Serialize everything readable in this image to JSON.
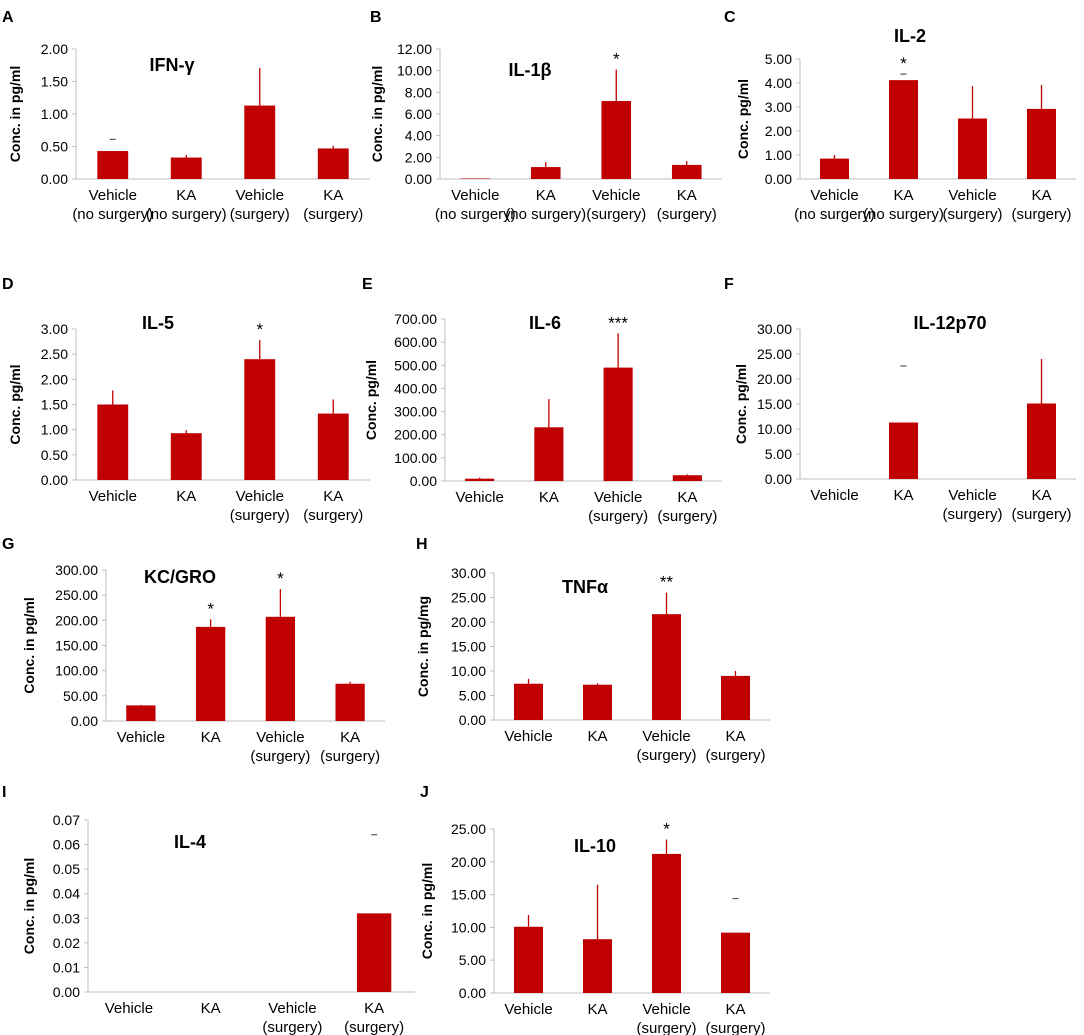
{
  "colors": {
    "bar": "#c00000",
    "axis": "#bfbfbf",
    "text": "#000000"
  },
  "chart_data": [
    {
      "panel": "A",
      "type": "bar",
      "title": "IFN-γ",
      "ylabel": "Conc. in pg/ml",
      "ylim": [
        0,
        2
      ],
      "yticks": [
        "0.00",
        "0.50",
        "1.00",
        "1.50",
        "2.00"
      ],
      "categories": [
        [
          "Vehicle",
          "(no surgery)"
        ],
        [
          "KA",
          "(no surgery)"
        ],
        [
          "Vehicle",
          "(surgery)"
        ],
        [
          "KA",
          "(surgery)"
        ]
      ],
      "values": [
        0.43,
        0.33,
        1.13,
        0.47
      ],
      "errors": [
        0.18,
        0.04,
        0.58,
        0.04
      ],
      "error_style": [
        "dash",
        "bar",
        "bar",
        "bar"
      ],
      "significance": [
        "",
        "",
        "",
        ""
      ]
    },
    {
      "panel": "B",
      "type": "bar",
      "title": "IL-1β",
      "ylabel": "Conc. in pg/ml",
      "ylim": [
        0,
        12
      ],
      "yticks": [
        "0.00",
        "2.00",
        "4.00",
        "6.00",
        "8.00",
        "10.00",
        "12.00"
      ],
      "categories": [
        [
          "Vehicle",
          "(no surgery)"
        ],
        [
          "KA",
          "(no surgery)"
        ],
        [
          "Vehicle",
          "(surgery)"
        ],
        [
          "KA",
          "(surgery)"
        ]
      ],
      "values": [
        0.05,
        1.1,
        7.2,
        1.3
      ],
      "errors": [
        0,
        0.45,
        2.9,
        0.35
      ],
      "error_style": [
        "bar",
        "bar",
        "bar",
        "bar"
      ],
      "significance": [
        "",
        "",
        "*",
        ""
      ]
    },
    {
      "panel": "C",
      "type": "bar",
      "title": "IL-2",
      "ylabel": "Conc. pg/ml",
      "ylim": [
        0,
        5
      ],
      "yticks": [
        "0.00",
        "1.00",
        "2.00",
        "3.00",
        "4.00",
        "5.00"
      ],
      "categories": [
        [
          "Vehicle",
          "(no surgery)"
        ],
        [
          "KA",
          "(no surgery)"
        ],
        [
          "Vehicle",
          "(surgery)"
        ],
        [
          "KA",
          "(surgery)"
        ]
      ],
      "values": [
        0.85,
        4.12,
        2.52,
        2.92
      ],
      "errors": [
        0.15,
        0.25,
        1.35,
        1.0
      ],
      "error_style": [
        "bar",
        "dash",
        "bar",
        "bar"
      ],
      "significance": [
        "",
        "*",
        "",
        ""
      ]
    },
    {
      "panel": "D",
      "type": "bar",
      "title": "IL-5",
      "ylabel": "Conc. pg/ml",
      "ylim": [
        0,
        3
      ],
      "yticks": [
        "0.00",
        "0.50",
        "1.00",
        "1.50",
        "2.00",
        "2.50",
        "3.00"
      ],
      "categories": [
        [
          "Vehicle"
        ],
        [
          "KA"
        ],
        [
          "Vehicle",
          "(surgery)"
        ],
        [
          "KA",
          "(surgery)"
        ]
      ],
      "values": [
        1.5,
        0.93,
        2.4,
        1.32
      ],
      "errors": [
        0.28,
        0.06,
        0.38,
        0.28
      ],
      "error_style": [
        "bar",
        "bar",
        "bar",
        "bar"
      ],
      "significance": [
        "",
        "",
        "*",
        ""
      ]
    },
    {
      "panel": "E",
      "type": "bar",
      "title": "IL-6",
      "ylabel": "Conc. pg/ml",
      "ylim": [
        0,
        700
      ],
      "yticks": [
        "0.00",
        "100.00",
        "200.00",
        "300.00",
        "400.00",
        "500.00",
        "600.00",
        "700.00"
      ],
      "categories": [
        [
          "Vehicle"
        ],
        [
          "KA"
        ],
        [
          "Vehicle",
          "(surgery)"
        ],
        [
          "KA",
          "(surgery)"
        ]
      ],
      "values": [
        10,
        232,
        490,
        25
      ],
      "errors": [
        5,
        122,
        148,
        4
      ],
      "error_style": [
        "bar",
        "bar",
        "bar",
        "bar"
      ],
      "significance": [
        "",
        "",
        "***",
        ""
      ]
    },
    {
      "panel": "F",
      "type": "bar",
      "title": "IL-12p70",
      "ylabel": "Conc. pg/ml",
      "ylim": [
        0,
        30
      ],
      "yticks": [
        "0.00",
        "5.00",
        "10.00",
        "15.00",
        "20.00",
        "25.00",
        "30.00"
      ],
      "categories": [
        [
          "Vehicle"
        ],
        [
          "KA"
        ],
        [
          "Vehicle",
          "(surgery)"
        ],
        [
          "KA",
          "(surgery)"
        ]
      ],
      "values": [
        0,
        11.3,
        0,
        15.1
      ],
      "errors": [
        0,
        11.3,
        0,
        8.9
      ],
      "error_style": [
        "bar",
        "dash",
        "bar",
        "bar"
      ],
      "significance": [
        "",
        "",
        "",
        ""
      ]
    },
    {
      "panel": "G",
      "type": "bar",
      "title": "KC/GRO",
      "ylabel": "Conc. in pg/ml",
      "ylim": [
        0,
        300
      ],
      "yticks": [
        "0.00",
        "50.00",
        "100.00",
        "150.00",
        "200.00",
        "250.00",
        "300.00"
      ],
      "categories": [
        [
          "Vehicle"
        ],
        [
          "KA"
        ],
        [
          "Vehicle",
          "(surgery)"
        ],
        [
          "KA",
          "(surgery)"
        ]
      ],
      "values": [
        31,
        187,
        207,
        74
      ],
      "errors": [
        1,
        15,
        55,
        4
      ],
      "error_style": [
        "bar",
        "bar",
        "bar",
        "bar"
      ],
      "significance": [
        "",
        "*",
        "*",
        ""
      ]
    },
    {
      "panel": "H",
      "type": "bar",
      "title": "TNFα",
      "ylabel": "Conc. in pg/mg",
      "ylim": [
        0,
        30
      ],
      "yticks": [
        "0.00",
        "5.00",
        "10.00",
        "15.00",
        "20.00",
        "25.00",
        "30.00"
      ],
      "categories": [
        [
          "Vehicle"
        ],
        [
          "KA"
        ],
        [
          "Vehicle",
          "(surgery)"
        ],
        [
          "KA",
          "(surgery)"
        ]
      ],
      "values": [
        7.4,
        7.2,
        21.6,
        9.0
      ],
      "errors": [
        1.0,
        0.3,
        4.4,
        1.0
      ],
      "error_style": [
        "bar",
        "bar",
        "bar",
        "bar"
      ],
      "significance": [
        "",
        "",
        "**",
        ""
      ]
    },
    {
      "panel": "I",
      "type": "bar",
      "title": "IL-4",
      "ylabel": "Conc. in pg/ml",
      "ylim": [
        0,
        0.07
      ],
      "yticks": [
        "0.00",
        "0.01",
        "0.02",
        "0.03",
        "0.04",
        "0.05",
        "0.06",
        "0.07"
      ],
      "categories": [
        [
          "Vehicle"
        ],
        [
          "KA"
        ],
        [
          "Vehicle",
          "(surgery)"
        ],
        [
          "KA",
          "(surgery)"
        ]
      ],
      "values": [
        0,
        0,
        0,
        0.032
      ],
      "errors": [
        0,
        0,
        0,
        0.032
      ],
      "error_style": [
        "bar",
        "bar",
        "bar",
        "dash"
      ],
      "significance": [
        "",
        "",
        "",
        ""
      ]
    },
    {
      "panel": "J",
      "type": "bar",
      "title": "IL-10",
      "ylabel": "Conc. in pg/ml",
      "ylim": [
        0,
        25
      ],
      "yticks": [
        "0.00",
        "5.00",
        "10.00",
        "15.00",
        "20.00",
        "25.00"
      ],
      "categories": [
        [
          "Vehicle"
        ],
        [
          "KA"
        ],
        [
          "Vehicle",
          "(surgery)"
        ],
        [
          "KA",
          "(surgery)"
        ]
      ],
      "values": [
        10.1,
        8.2,
        21.2,
        9.2
      ],
      "errors": [
        1.8,
        8.3,
        2.2,
        5.2
      ],
      "error_style": [
        "bar",
        "bar",
        "bar",
        "dash"
      ],
      "significance": [
        "",
        "",
        "*",
        ""
      ]
    }
  ]
}
